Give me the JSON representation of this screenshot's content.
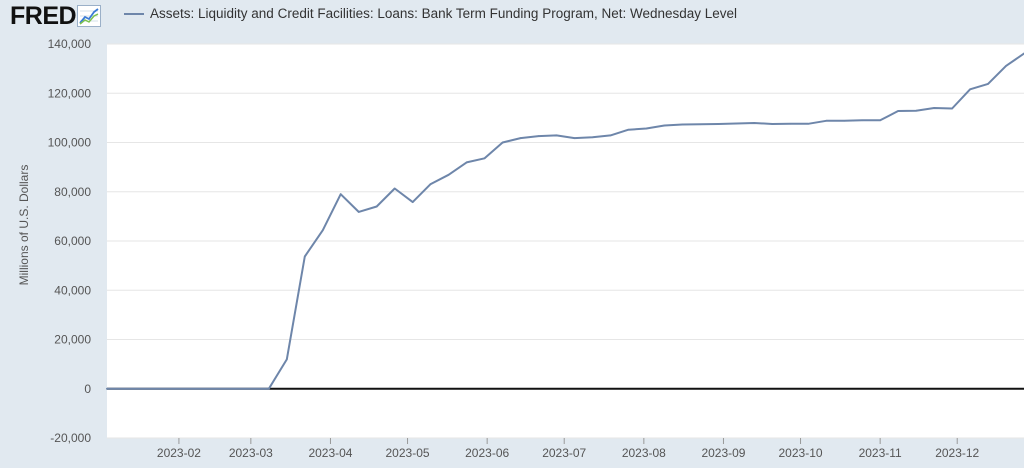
{
  "header": {
    "logo_text": "FRED",
    "logo_icon": "trend-chart-icon",
    "legend_label": "Assets: Liquidity and Credit Facilities: Loans: Bank Term Funding Program, Net: Wednesday Level"
  },
  "colors": {
    "background": "#e1e9f0",
    "plot_background": "#ffffff",
    "series": "#6e86aa",
    "zero_line": "#111111",
    "gridline": "#e6e6e6"
  },
  "chart_data": {
    "type": "line",
    "title": "",
    "xlabel": "",
    "ylabel": "Millions of U.S. Dollars",
    "ylim": [
      -20000,
      140000
    ],
    "xlim": [
      "2023-01-04",
      "2023-12-27"
    ],
    "yticks": [
      -20000,
      0,
      20000,
      40000,
      60000,
      80000,
      100000,
      120000,
      140000
    ],
    "ytick_labels": [
      "-20,000",
      "0",
      "20,000",
      "40,000",
      "60,000",
      "80,000",
      "100,000",
      "120,000",
      "140,000"
    ],
    "xticks": [
      "2023-02-01",
      "2023-03-01",
      "2023-04-01",
      "2023-05-01",
      "2023-06-01",
      "2023-07-01",
      "2023-08-01",
      "2023-09-01",
      "2023-10-01",
      "2023-11-01",
      "2023-12-01"
    ],
    "xtick_labels": [
      "2023-02",
      "2023-03",
      "2023-04",
      "2023-05",
      "2023-06",
      "2023-07",
      "2023-08",
      "2023-09",
      "2023-10",
      "2023-11",
      "2023-12"
    ],
    "grid": "horizontal",
    "zero_line": true,
    "series": [
      {
        "name": "Assets: Liquidity and Credit Facilities: Loans: Bank Term Funding Program, Net: Wednesday Level",
        "x": [
          "2023-01-04",
          "2023-03-08",
          "2023-03-15",
          "2023-03-22",
          "2023-03-29",
          "2023-04-05",
          "2023-04-12",
          "2023-04-19",
          "2023-04-26",
          "2023-05-03",
          "2023-05-10",
          "2023-05-17",
          "2023-05-24",
          "2023-05-31",
          "2023-06-07",
          "2023-06-14",
          "2023-06-21",
          "2023-06-28",
          "2023-07-05",
          "2023-07-12",
          "2023-07-19",
          "2023-07-26",
          "2023-08-02",
          "2023-08-09",
          "2023-08-16",
          "2023-08-23",
          "2023-08-30",
          "2023-09-06",
          "2023-09-13",
          "2023-09-20",
          "2023-09-27",
          "2023-10-04",
          "2023-10-11",
          "2023-10-18",
          "2023-10-25",
          "2023-11-01",
          "2023-11-08",
          "2023-11-15",
          "2023-11-22",
          "2023-11-29",
          "2023-12-06",
          "2023-12-13",
          "2023-12-20",
          "2023-12-27"
        ],
        "values": [
          0,
          0,
          11900,
          53700,
          64400,
          79000,
          71800,
          74000,
          81300,
          75800,
          83100,
          86900,
          91900,
          93600,
          100000,
          101800,
          102600,
          102900,
          101800,
          102100,
          102900,
          105200,
          105700,
          106900,
          107300,
          107400,
          107500,
          107700,
          107900,
          107500,
          107600,
          107600,
          108800,
          108800,
          109000,
          109000,
          112800,
          112900,
          114000,
          113800,
          121600,
          123800,
          131100,
          136100
        ]
      }
    ]
  }
}
